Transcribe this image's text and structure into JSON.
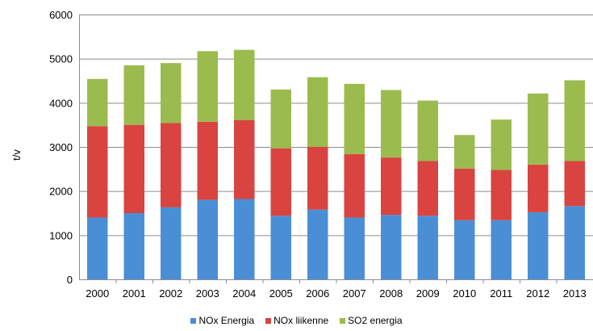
{
  "chart_data": {
    "type": "bar",
    "stacked": true,
    "title": "",
    "xlabel": "",
    "ylabel": "t/v",
    "ylim": [
      0,
      6000
    ],
    "yticks": [
      "0",
      "1000",
      "2000",
      "3000",
      "4000",
      "5000",
      "6000"
    ],
    "grid": true,
    "legend_position": "bottom",
    "categories": [
      "2000",
      "2001",
      "2002",
      "2003",
      "2004",
      "2005",
      "2006",
      "2007",
      "2008",
      "2009",
      "2010",
      "2011",
      "2012",
      "2013"
    ],
    "series": [
      {
        "name": "NOx Energia",
        "color": "#4a8fd6",
        "values": [
          1400,
          1500,
          1630,
          1800,
          1820,
          1440,
          1580,
          1400,
          1460,
          1440,
          1340,
          1340,
          1520,
          1660
        ]
      },
      {
        "name": "NOx liikenne",
        "color": "#d94440",
        "values": [
          2070,
          2000,
          1910,
          1770,
          1790,
          1530,
          1420,
          1440,
          1300,
          1240,
          1170,
          1140,
          1080,
          1020
        ]
      },
      {
        "name": "SO2 energia",
        "color": "#9bbb4e",
        "values": [
          1070,
          1350,
          1360,
          1600,
          1590,
          1330,
          1580,
          1590,
          1530,
          1370,
          760,
          1140,
          1610,
          1830
        ]
      }
    ]
  }
}
